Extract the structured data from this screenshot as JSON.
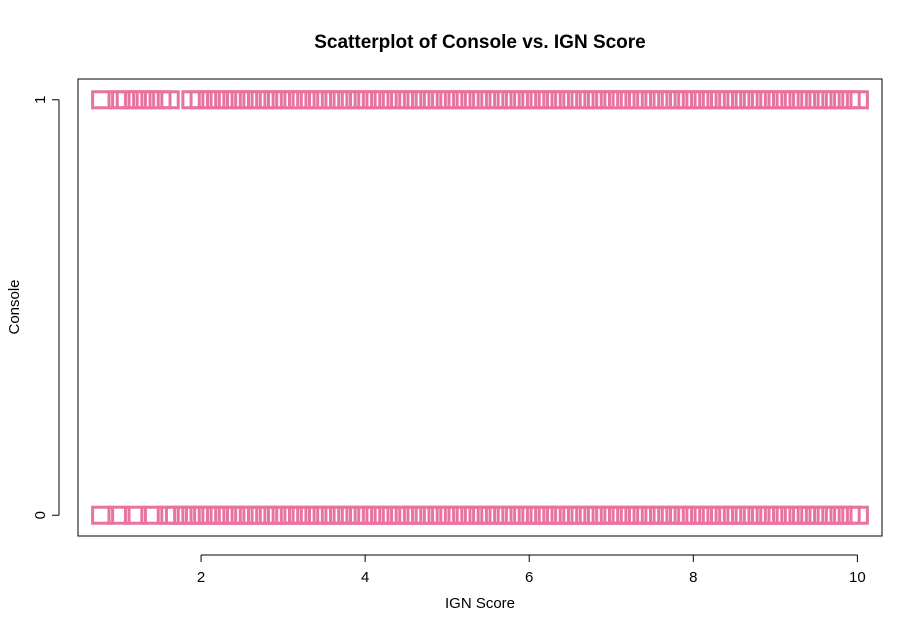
{
  "chart_data": {
    "type": "scatter",
    "title": "Scatterplot of Console vs. IGN Score",
    "xlabel": "IGN Score",
    "ylabel": "Console",
    "xlim": [
      0.5,
      10.3
    ],
    "ylim": [
      -0.05,
      1.05
    ],
    "x_ticks": [
      2,
      4,
      6,
      8,
      10
    ],
    "y_ticks": [
      0,
      1
    ],
    "grid": false,
    "marker": "open-square",
    "colors": {
      "marker": "#E8739F",
      "axis": "#000000",
      "background": "#ffffff"
    },
    "series": [
      {
        "values": [
          [
            0.8,
            0
          ],
          [
            1.0,
            0
          ],
          [
            1.2,
            0
          ],
          [
            1.4,
            0
          ],
          [
            1.6,
            0
          ],
          [
            1.7,
            0
          ],
          [
            1.8,
            0
          ],
          [
            1.9,
            0
          ],
          [
            2.0,
            0
          ],
          [
            2.1,
            0
          ],
          [
            2.2,
            0
          ],
          [
            2.3,
            0
          ],
          [
            2.4,
            0
          ],
          [
            2.5,
            0
          ],
          [
            2.6,
            0
          ],
          [
            2.7,
            0
          ],
          [
            2.8,
            0
          ],
          [
            2.9,
            0
          ],
          [
            3.0,
            0
          ],
          [
            3.1,
            0
          ],
          [
            3.2,
            0
          ],
          [
            3.3,
            0
          ],
          [
            3.4,
            0
          ],
          [
            3.5,
            0
          ],
          [
            3.6,
            0
          ],
          [
            3.7,
            0
          ],
          [
            3.8,
            0
          ],
          [
            3.9,
            0
          ],
          [
            4.0,
            0
          ],
          [
            4.1,
            0
          ],
          [
            4.2,
            0
          ],
          [
            4.3,
            0
          ],
          [
            4.4,
            0
          ],
          [
            4.5,
            0
          ],
          [
            4.6,
            0
          ],
          [
            4.7,
            0
          ],
          [
            4.8,
            0
          ],
          [
            4.9,
            0
          ],
          [
            5.0,
            0
          ],
          [
            5.1,
            0
          ],
          [
            5.2,
            0
          ],
          [
            5.3,
            0
          ],
          [
            5.4,
            0
          ],
          [
            5.5,
            0
          ],
          [
            5.6,
            0
          ],
          [
            5.7,
            0
          ],
          [
            5.8,
            0
          ],
          [
            5.9,
            0
          ],
          [
            6.0,
            0
          ],
          [
            6.1,
            0
          ],
          [
            6.2,
            0
          ],
          [
            6.3,
            0
          ],
          [
            6.4,
            0
          ],
          [
            6.5,
            0
          ],
          [
            6.6,
            0
          ],
          [
            6.7,
            0
          ],
          [
            6.8,
            0
          ],
          [
            6.9,
            0
          ],
          [
            7.0,
            0
          ],
          [
            7.1,
            0
          ],
          [
            7.2,
            0
          ],
          [
            7.3,
            0
          ],
          [
            7.4,
            0
          ],
          [
            7.5,
            0
          ],
          [
            7.6,
            0
          ],
          [
            7.7,
            0
          ],
          [
            7.8,
            0
          ],
          [
            7.9,
            0
          ],
          [
            8.0,
            0
          ],
          [
            8.1,
            0
          ],
          [
            8.2,
            0
          ],
          [
            8.3,
            0
          ],
          [
            8.4,
            0
          ],
          [
            8.5,
            0
          ],
          [
            8.6,
            0
          ],
          [
            8.7,
            0
          ],
          [
            8.8,
            0
          ],
          [
            8.9,
            0
          ],
          [
            9.0,
            0
          ],
          [
            9.1,
            0
          ],
          [
            9.2,
            0
          ],
          [
            9.3,
            0
          ],
          [
            9.4,
            0
          ],
          [
            9.5,
            0
          ],
          [
            9.6,
            0
          ],
          [
            9.7,
            0
          ],
          [
            9.8,
            0
          ],
          [
            9.9,
            0
          ],
          [
            10.0,
            0
          ],
          [
            0.8,
            1
          ],
          [
            1.0,
            1
          ],
          [
            1.1,
            1
          ],
          [
            1.2,
            1
          ],
          [
            1.3,
            1
          ],
          [
            1.4,
            1
          ],
          [
            1.5,
            1
          ],
          [
            1.6,
            1
          ],
          [
            1.9,
            1
          ],
          [
            2.0,
            1
          ],
          [
            2.1,
            1
          ],
          [
            2.2,
            1
          ],
          [
            2.3,
            1
          ],
          [
            2.4,
            1
          ],
          [
            2.5,
            1
          ],
          [
            2.6,
            1
          ],
          [
            2.7,
            1
          ],
          [
            2.8,
            1
          ],
          [
            2.9,
            1
          ],
          [
            3.0,
            1
          ],
          [
            3.1,
            1
          ],
          [
            3.2,
            1
          ],
          [
            3.3,
            1
          ],
          [
            3.4,
            1
          ],
          [
            3.5,
            1
          ],
          [
            3.6,
            1
          ],
          [
            3.7,
            1
          ],
          [
            3.8,
            1
          ],
          [
            3.9,
            1
          ],
          [
            4.0,
            1
          ],
          [
            4.1,
            1
          ],
          [
            4.2,
            1
          ],
          [
            4.3,
            1
          ],
          [
            4.4,
            1
          ],
          [
            4.5,
            1
          ],
          [
            4.6,
            1
          ],
          [
            4.7,
            1
          ],
          [
            4.8,
            1
          ],
          [
            4.9,
            1
          ],
          [
            5.0,
            1
          ],
          [
            5.1,
            1
          ],
          [
            5.2,
            1
          ],
          [
            5.3,
            1
          ],
          [
            5.4,
            1
          ],
          [
            5.5,
            1
          ],
          [
            5.6,
            1
          ],
          [
            5.7,
            1
          ],
          [
            5.8,
            1
          ],
          [
            5.9,
            1
          ],
          [
            6.0,
            1
          ],
          [
            6.1,
            1
          ],
          [
            6.2,
            1
          ],
          [
            6.3,
            1
          ],
          [
            6.4,
            1
          ],
          [
            6.5,
            1
          ],
          [
            6.6,
            1
          ],
          [
            6.7,
            1
          ],
          [
            6.8,
            1
          ],
          [
            6.9,
            1
          ],
          [
            7.0,
            1
          ],
          [
            7.1,
            1
          ],
          [
            7.2,
            1
          ],
          [
            7.3,
            1
          ],
          [
            7.4,
            1
          ],
          [
            7.5,
            1
          ],
          [
            7.6,
            1
          ],
          [
            7.7,
            1
          ],
          [
            7.8,
            1
          ],
          [
            7.9,
            1
          ],
          [
            8.0,
            1
          ],
          [
            8.1,
            1
          ],
          [
            8.2,
            1
          ],
          [
            8.3,
            1
          ],
          [
            8.4,
            1
          ],
          [
            8.5,
            1
          ],
          [
            8.6,
            1
          ],
          [
            8.7,
            1
          ],
          [
            8.8,
            1
          ],
          [
            8.9,
            1
          ],
          [
            9.0,
            1
          ],
          [
            9.1,
            1
          ],
          [
            9.2,
            1
          ],
          [
            9.3,
            1
          ],
          [
            9.4,
            1
          ],
          [
            9.5,
            1
          ],
          [
            9.6,
            1
          ],
          [
            9.7,
            1
          ],
          [
            9.8,
            1
          ],
          [
            9.9,
            1
          ],
          [
            10.0,
            1
          ]
        ]
      }
    ]
  }
}
